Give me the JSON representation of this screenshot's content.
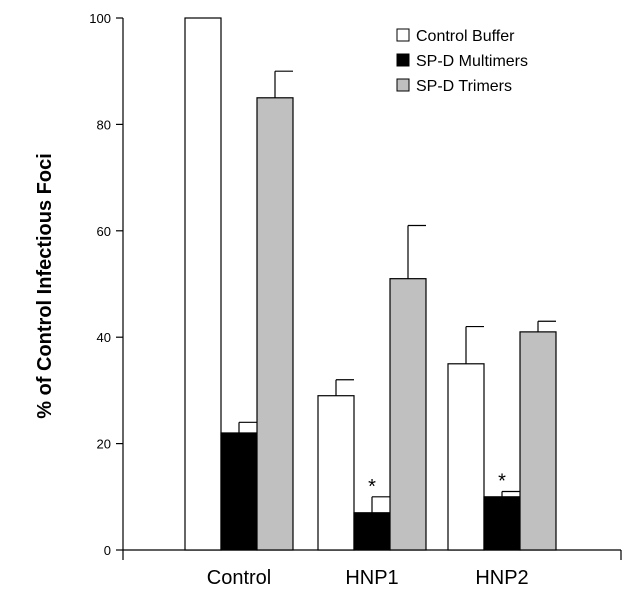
{
  "chart_data": {
    "type": "bar",
    "title": "",
    "xlabel": "",
    "ylabel": "% of Control Infectious Foci",
    "ylim": [
      0,
      100
    ],
    "yticks": [
      0,
      20,
      40,
      60,
      80,
      100
    ],
    "categories": [
      "Control",
      "HNP1",
      "HNP2"
    ],
    "series": [
      {
        "name": "Control Buffer",
        "color": "#ffffff",
        "values": [
          100,
          29,
          35
        ],
        "errors": [
          0,
          3,
          7
        ],
        "significant": [
          false,
          false,
          false
        ]
      },
      {
        "name": "SP-D Multimers",
        "color": "#000000",
        "values": [
          22,
          7,
          10
        ],
        "errors": [
          2,
          3,
          1
        ],
        "significant": [
          false,
          true,
          true
        ]
      },
      {
        "name": "SP-D Trimers",
        "color": "#c0c0c0",
        "values": [
          85,
          51,
          41
        ],
        "errors": [
          5,
          10,
          2
        ],
        "significant": [
          false,
          false,
          false
        ]
      }
    ],
    "significance_marker": "*",
    "legend_position": "top-right",
    "grid": false
  }
}
